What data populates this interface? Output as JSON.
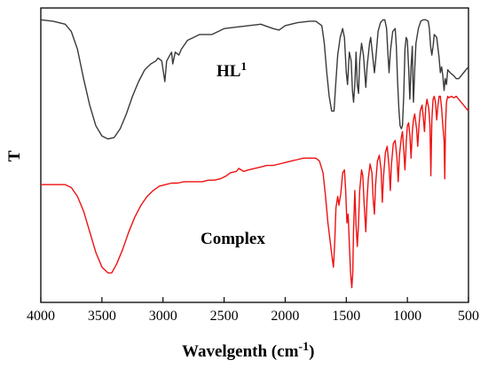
{
  "chart_data": {
    "type": "line",
    "xlabel": "Wavelgenth (cm",
    "xlabel_superscript": "-1",
    "xlabel_suffix": ")",
    "ylabel": "T",
    "xlim": [
      4000,
      500
    ],
    "ylim": [
      0,
      1
    ],
    "x_reversed": true,
    "x_ticks": [
      4000,
      3500,
      3000,
      2500,
      2000,
      1500,
      1000,
      500
    ],
    "grid": false,
    "series": [
      {
        "name": "HL",
        "name_superscript": "1",
        "color": "#3a3a3a",
        "points": [
          [
            4000,
            0.96
          ],
          [
            3900,
            0.955
          ],
          [
            3800,
            0.945
          ],
          [
            3750,
            0.92
          ],
          [
            3700,
            0.86
          ],
          [
            3650,
            0.76
          ],
          [
            3600,
            0.67
          ],
          [
            3550,
            0.6
          ],
          [
            3500,
            0.565
          ],
          [
            3450,
            0.555
          ],
          [
            3400,
            0.56
          ],
          [
            3350,
            0.59
          ],
          [
            3300,
            0.64
          ],
          [
            3250,
            0.7
          ],
          [
            3200,
            0.75
          ],
          [
            3150,
            0.79
          ],
          [
            3100,
            0.81
          ],
          [
            3060,
            0.82
          ],
          [
            3040,
            0.83
          ],
          [
            3010,
            0.82
          ],
          [
            2985,
            0.75
          ],
          [
            2970,
            0.82
          ],
          [
            2930,
            0.85
          ],
          [
            2920,
            0.81
          ],
          [
            2900,
            0.85
          ],
          [
            2870,
            0.84
          ],
          [
            2850,
            0.86
          ],
          [
            2800,
            0.89
          ],
          [
            2750,
            0.9
          ],
          [
            2700,
            0.91
          ],
          [
            2650,
            0.91
          ],
          [
            2600,
            0.91
          ],
          [
            2550,
            0.92
          ],
          [
            2500,
            0.93
          ],
          [
            2400,
            0.935
          ],
          [
            2300,
            0.94
          ],
          [
            2200,
            0.945
          ],
          [
            2100,
            0.93
          ],
          [
            2050,
            0.925
          ],
          [
            2000,
            0.94
          ],
          [
            1900,
            0.95
          ],
          [
            1800,
            0.955
          ],
          [
            1750,
            0.955
          ],
          [
            1700,
            0.94
          ],
          [
            1680,
            0.88
          ],
          [
            1660,
            0.78
          ],
          [
            1640,
            0.7
          ],
          [
            1620,
            0.65
          ],
          [
            1600,
            0.65
          ],
          [
            1590,
            0.72
          ],
          [
            1570,
            0.84
          ],
          [
            1550,
            0.9
          ],
          [
            1530,
            0.93
          ],
          [
            1515,
            0.9
          ],
          [
            1500,
            0.78
          ],
          [
            1490,
            0.74
          ],
          [
            1475,
            0.85
          ],
          [
            1460,
            0.82
          ],
          [
            1450,
            0.72
          ],
          [
            1440,
            0.68
          ],
          [
            1430,
            0.74
          ],
          [
            1420,
            0.85
          ],
          [
            1410,
            0.74
          ],
          [
            1400,
            0.71
          ],
          [
            1390,
            0.82
          ],
          [
            1375,
            0.88
          ],
          [
            1360,
            0.84
          ],
          [
            1340,
            0.73
          ],
          [
            1330,
            0.8
          ],
          [
            1310,
            0.88
          ],
          [
            1300,
            0.9
          ],
          [
            1290,
            0.86
          ],
          [
            1270,
            0.78
          ],
          [
            1260,
            0.82
          ],
          [
            1240,
            0.92
          ],
          [
            1220,
            0.95
          ],
          [
            1200,
            0.96
          ],
          [
            1185,
            0.96
          ],
          [
            1170,
            0.93
          ],
          [
            1160,
            0.85
          ],
          [
            1150,
            0.78
          ],
          [
            1140,
            0.85
          ],
          [
            1120,
            0.92
          ],
          [
            1100,
            0.93
          ],
          [
            1090,
            0.87
          ],
          [
            1080,
            0.75
          ],
          [
            1070,
            0.66
          ],
          [
            1060,
            0.6
          ],
          [
            1050,
            0.59
          ],
          [
            1040,
            0.6
          ],
          [
            1030,
            0.7
          ],
          [
            1020,
            0.86
          ],
          [
            1010,
            0.9
          ],
          [
            1000,
            0.89
          ],
          [
            990,
            0.8
          ],
          [
            980,
            0.69
          ],
          [
            970,
            0.8
          ],
          [
            960,
            0.87
          ],
          [
            955,
            0.77
          ],
          [
            950,
            0.68
          ],
          [
            940,
            0.79
          ],
          [
            930,
            0.88
          ],
          [
            910,
            0.93
          ],
          [
            890,
            0.955
          ],
          [
            870,
            0.96
          ],
          [
            850,
            0.96
          ],
          [
            830,
            0.955
          ],
          [
            820,
            0.93
          ],
          [
            810,
            0.87
          ],
          [
            800,
            0.84
          ],
          [
            790,
            0.87
          ],
          [
            780,
            0.91
          ],
          [
            760,
            0.9
          ],
          [
            740,
            0.83
          ],
          [
            730,
            0.78
          ],
          [
            720,
            0.8
          ],
          [
            710,
            0.77
          ],
          [
            700,
            0.72
          ],
          [
            690,
            0.76
          ],
          [
            680,
            0.74
          ],
          [
            670,
            0.79
          ],
          [
            650,
            0.78
          ],
          [
            620,
            0.77
          ],
          [
            600,
            0.76
          ],
          [
            580,
            0.76
          ],
          [
            560,
            0.77
          ],
          [
            540,
            0.78
          ],
          [
            520,
            0.79
          ],
          [
            500,
            0.8
          ]
        ]
      },
      {
        "name": "Complex",
        "color": "#ee1111",
        "points": [
          [
            4000,
            0.4
          ],
          [
            3900,
            0.4
          ],
          [
            3800,
            0.4
          ],
          [
            3750,
            0.39
          ],
          [
            3700,
            0.36
          ],
          [
            3650,
            0.31
          ],
          [
            3600,
            0.24
          ],
          [
            3550,
            0.17
          ],
          [
            3500,
            0.12
          ],
          [
            3450,
            0.1
          ],
          [
            3420,
            0.1
          ],
          [
            3380,
            0.13
          ],
          [
            3330,
            0.18
          ],
          [
            3280,
            0.24
          ],
          [
            3230,
            0.29
          ],
          [
            3180,
            0.33
          ],
          [
            3130,
            0.36
          ],
          [
            3080,
            0.38
          ],
          [
            3030,
            0.395
          ],
          [
            2980,
            0.4
          ],
          [
            2930,
            0.405
          ],
          [
            2880,
            0.405
          ],
          [
            2830,
            0.41
          ],
          [
            2780,
            0.41
          ],
          [
            2730,
            0.41
          ],
          [
            2680,
            0.41
          ],
          [
            2630,
            0.415
          ],
          [
            2580,
            0.415
          ],
          [
            2530,
            0.42
          ],
          [
            2480,
            0.43
          ],
          [
            2450,
            0.44
          ],
          [
            2400,
            0.445
          ],
          [
            2380,
            0.455
          ],
          [
            2360,
            0.45
          ],
          [
            2340,
            0.445
          ],
          [
            2300,
            0.45
          ],
          [
            2250,
            0.455
          ],
          [
            2200,
            0.46
          ],
          [
            2150,
            0.465
          ],
          [
            2100,
            0.465
          ],
          [
            2050,
            0.47
          ],
          [
            2000,
            0.475
          ],
          [
            1950,
            0.48
          ],
          [
            1900,
            0.485
          ],
          [
            1850,
            0.49
          ],
          [
            1800,
            0.49
          ],
          [
            1750,
            0.49
          ],
          [
            1720,
            0.48
          ],
          [
            1690,
            0.44
          ],
          [
            1670,
            0.36
          ],
          [
            1650,
            0.27
          ],
          [
            1630,
            0.2
          ],
          [
            1615,
            0.15
          ],
          [
            1605,
            0.12
          ],
          [
            1595,
            0.2
          ],
          [
            1585,
            0.32
          ],
          [
            1570,
            0.36
          ],
          [
            1560,
            0.33
          ],
          [
            1545,
            0.37
          ],
          [
            1530,
            0.44
          ],
          [
            1515,
            0.45
          ],
          [
            1505,
            0.38
          ],
          [
            1495,
            0.27
          ],
          [
            1485,
            0.3
          ],
          [
            1475,
            0.2
          ],
          [
            1465,
            0.1
          ],
          [
            1455,
            0.05
          ],
          [
            1447,
            0.1
          ],
          [
            1440,
            0.25
          ],
          [
            1430,
            0.38
          ],
          [
            1420,
            0.26
          ],
          [
            1410,
            0.19
          ],
          [
            1400,
            0.27
          ],
          [
            1390,
            0.38
          ],
          [
            1375,
            0.45
          ],
          [
            1365,
            0.43
          ],
          [
            1355,
            0.34
          ],
          [
            1340,
            0.24
          ],
          [
            1330,
            0.35
          ],
          [
            1320,
            0.42
          ],
          [
            1305,
            0.47
          ],
          [
            1290,
            0.44
          ],
          [
            1280,
            0.35
          ],
          [
            1270,
            0.3
          ],
          [
            1260,
            0.4
          ],
          [
            1245,
            0.48
          ],
          [
            1230,
            0.5
          ],
          [
            1215,
            0.45
          ],
          [
            1205,
            0.34
          ],
          [
            1195,
            0.43
          ],
          [
            1180,
            0.51
          ],
          [
            1165,
            0.53
          ],
          [
            1150,
            0.46
          ],
          [
            1140,
            0.38
          ],
          [
            1130,
            0.47
          ],
          [
            1115,
            0.54
          ],
          [
            1100,
            0.55
          ],
          [
            1085,
            0.49
          ],
          [
            1075,
            0.41
          ],
          [
            1065,
            0.5
          ],
          [
            1050,
            0.56
          ],
          [
            1040,
            0.58
          ],
          [
            1030,
            0.52
          ],
          [
            1020,
            0.45
          ],
          [
            1010,
            0.54
          ],
          [
            1000,
            0.6
          ],
          [
            990,
            0.61
          ],
          [
            980,
            0.57
          ],
          [
            970,
            0.49
          ],
          [
            960,
            0.58
          ],
          [
            950,
            0.62
          ],
          [
            940,
            0.64
          ],
          [
            925,
            0.59
          ],
          [
            915,
            0.53
          ],
          [
            905,
            0.6
          ],
          [
            895,
            0.65
          ],
          [
            880,
            0.67
          ],
          [
            870,
            0.63
          ],
          [
            860,
            0.58
          ],
          [
            850,
            0.66
          ],
          [
            840,
            0.69
          ],
          [
            825,
            0.66
          ],
          [
            815,
            0.6
          ],
          [
            808,
            0.43
          ],
          [
            800,
            0.62
          ],
          [
            790,
            0.69
          ],
          [
            780,
            0.7
          ],
          [
            770,
            0.68
          ],
          [
            760,
            0.62
          ],
          [
            750,
            0.67
          ],
          [
            740,
            0.7
          ],
          [
            730,
            0.7
          ],
          [
            720,
            0.66
          ],
          [
            710,
            0.6
          ],
          [
            700,
            0.55
          ],
          [
            694,
            0.42
          ],
          [
            688,
            0.6
          ],
          [
            680,
            0.68
          ],
          [
            670,
            0.7
          ],
          [
            660,
            0.695
          ],
          [
            640,
            0.7
          ],
          [
            620,
            0.695
          ],
          [
            600,
            0.7
          ],
          [
            580,
            0.69
          ],
          [
            560,
            0.68
          ],
          [
            540,
            0.67
          ],
          [
            520,
            0.66
          ],
          [
            500,
            0.65
          ]
        ]
      }
    ]
  }
}
